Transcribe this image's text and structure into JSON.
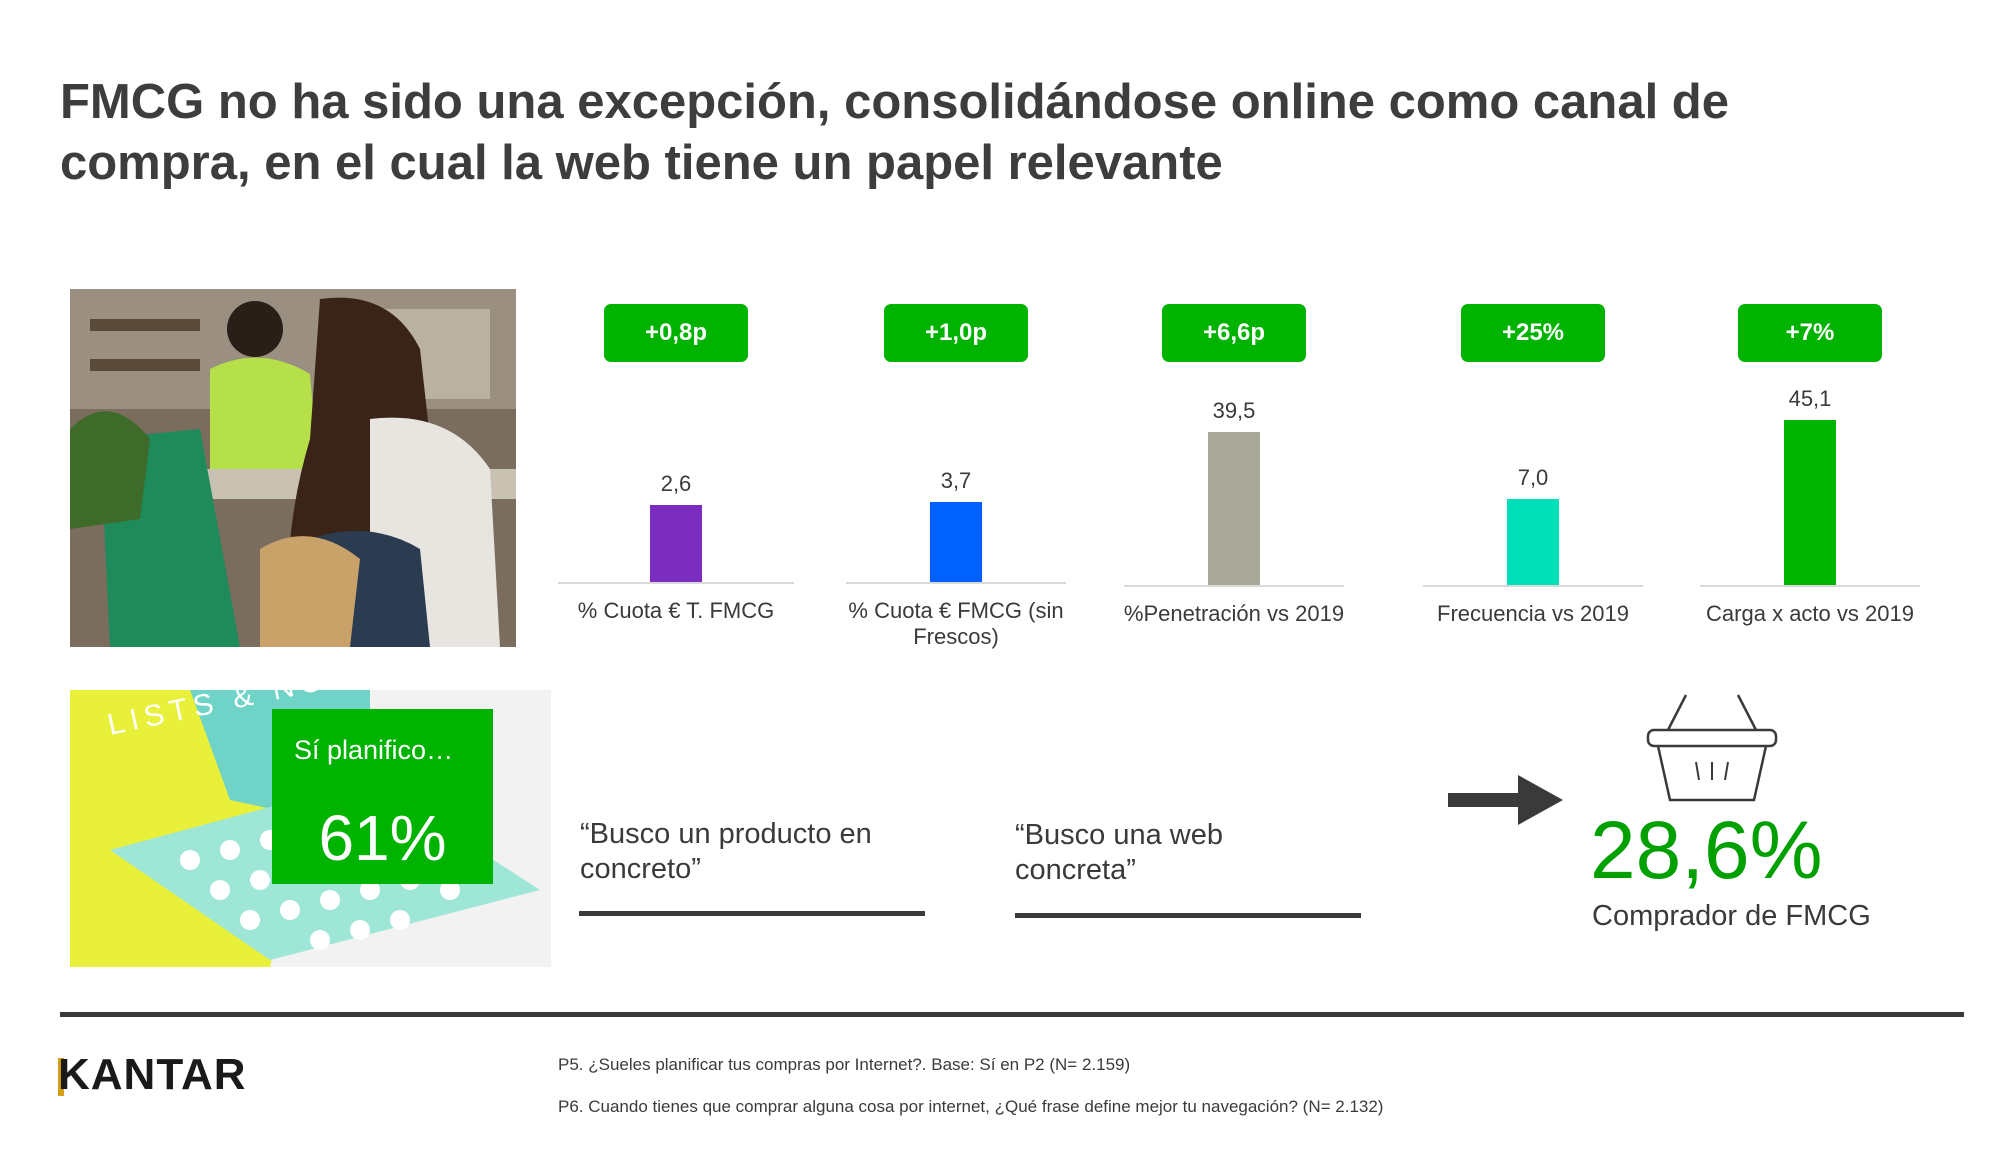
{
  "title": "FMCG no ha sido una excepción, consolidándose online como canal de compra, en el cual la web tiene un papel relevante",
  "colors": {
    "green": "#00b300",
    "purple": "#7b2dbf",
    "blue": "#0061ff",
    "gray": "#a9a999",
    "aqua": "#00e0b8",
    "dark_green": "#00b300"
  },
  "chart_data": {
    "type": "bar",
    "layout": "small-multiples",
    "charts": [
      {
        "category": "% Cuota € T. FMCG",
        "value": 2.6,
        "value_label": "2,6",
        "change": "+0,8p",
        "color": "#7b2dbf"
      },
      {
        "category": "% Cuota € FMCG (sin Frescos)",
        "value": 3.7,
        "value_label": "3,7",
        "change": "+1,0p",
        "color": "#0061ff"
      },
      {
        "category": "%Penetración vs 2019",
        "value": 39.5,
        "value_label": "39,5",
        "change": "+6,6p",
        "color": "#a9a999"
      },
      {
        "category": "Frecuencia vs 2019",
        "value": 7.0,
        "value_label": "7,0",
        "change": "+25%",
        "color": "#00e0b8"
      },
      {
        "category": "Carga x acto vs 2019",
        "value": 45.1,
        "value_label": "45,1",
        "change": "+7%",
        "color": "#00b300"
      }
    ]
  },
  "planning": {
    "label": "Sí planifico…",
    "value": "61%"
  },
  "quotes": [
    {
      "text": "“Busco un producto en concreto”"
    },
    {
      "text": "“Busco una web concreta”"
    }
  ],
  "highlight": {
    "value": "28,6%",
    "label": "Comprador de FMCG"
  },
  "photo2_text": "LISTS & NOTES",
  "footer": {
    "logo": "KANTAR",
    "notes": [
      "P5. ¿Sueles planificar tus compras por Internet?. Base: Sí en P2 (N= 2.159)",
      "P6. Cuando tienes que comprar alguna cosa por internet, ¿Qué frase define mejor tu navegación?  (N= 2.132)"
    ]
  }
}
